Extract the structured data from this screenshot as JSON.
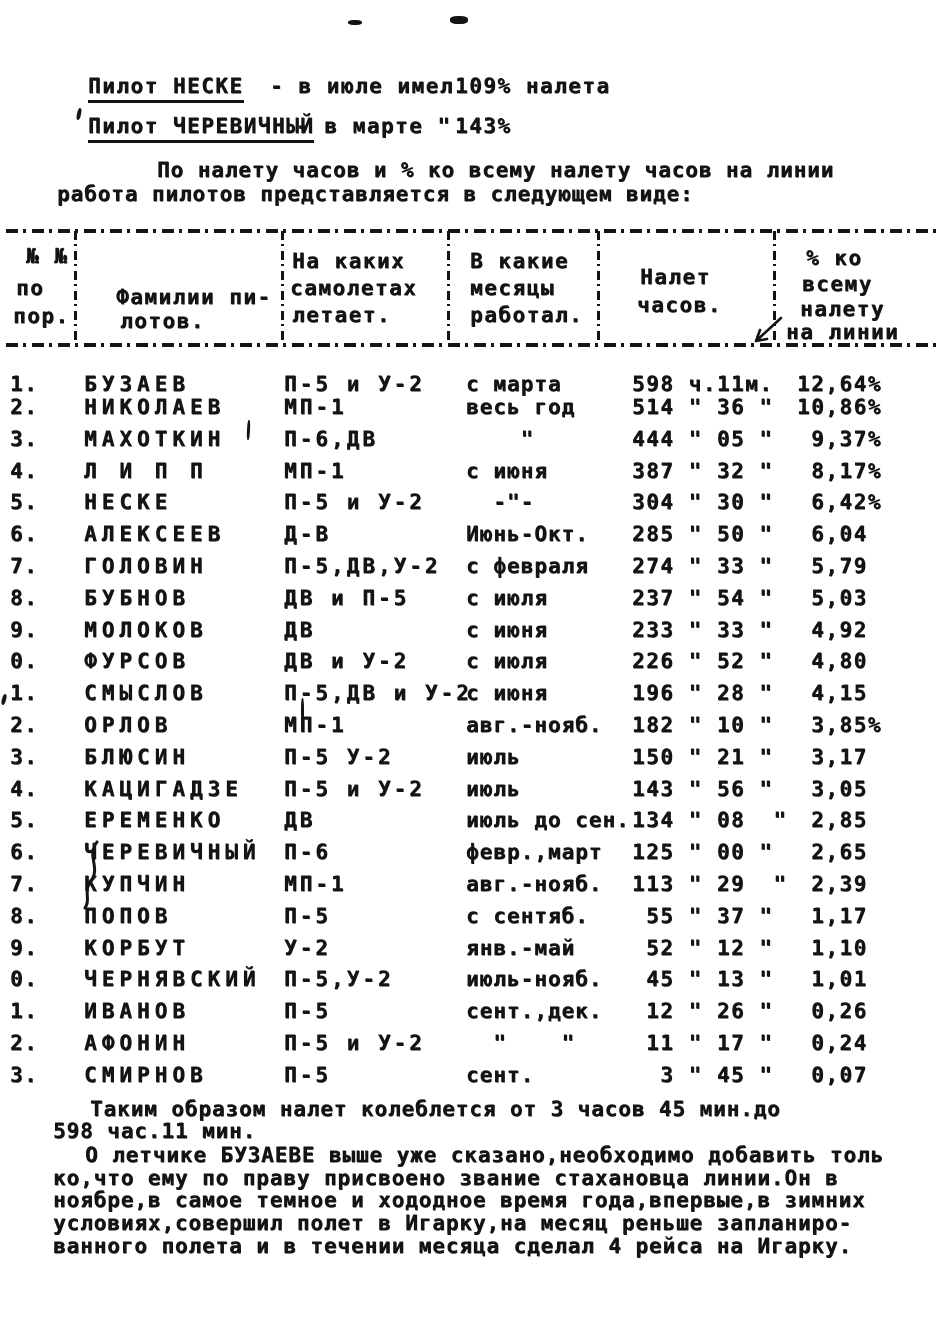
{
  "ink": "#141414",
  "paper": "#ffffff",
  "headline": {
    "line1": {
      "name": "Пилот НЕСКЕ",
      "middle": "- в июле имел",
      "value": "109% налета"
    },
    "line2": {
      "name": "Пилот ЧЕРЕВИЧНЫЙ",
      "middle": "- в марте \"",
      "value": "143%"
    }
  },
  "intro": {
    "line1": "По налету часов и % ко всему налету часов на линии",
    "line2": "работа пилотов представляется в следующем виде:"
  },
  "table": {
    "headers": {
      "num": [
        "№ №",
        "по",
        "пор."
      ],
      "name": [
        "Фамилии пи-",
        "лотов."
      ],
      "aircraft": [
        "На каких",
        "самолетах",
        "летает."
      ],
      "months": [
        "В какие",
        "месяцы",
        "работал."
      ],
      "hours": [
        "Налет",
        "часов."
      ],
      "percent": [
        "% ко",
        "всему",
        "налету",
        "на линии"
      ]
    },
    "rows": [
      {
        "num": "1.",
        "name": "БУЗАЕВ",
        "aircraft": "П-5 и У-2",
        "months": "с марта",
        "hours": "598 ч.11м.",
        "percent": "12,64%"
      },
      {
        "num": "2.",
        "name": "НИКОЛАЕВ",
        "aircraft": "МП-1",
        "months": "весь год",
        "hours": "514 \" 36 \"",
        "percent": "10,86%"
      },
      {
        "num": "3.",
        "name": "МАХОТКИН",
        "aircraft": "П-6,ДВ",
        "months": "    \"",
        "hours": "444 \" 05 \"",
        "percent": " 9,37%"
      },
      {
        "num": "4.",
        "name": "Л И П П",
        "aircraft": "МП-1",
        "months": "с июня",
        "hours": "387 \" 32 \"",
        "percent": " 8,17%"
      },
      {
        "num": "5.",
        "name": "НЕСКЕ",
        "aircraft": "П-5 и У-2",
        "months": "  -\"-",
        "hours": "304 \" 30 \"",
        "percent": " 6,42%"
      },
      {
        "num": "6.",
        "name": "АЛЕКСЕЕВ",
        "aircraft": "Д-В",
        "months": "Июнь-Окт.",
        "hours": "285 \" 50 \"",
        "percent": " 6,04"
      },
      {
        "num": "7.",
        "name": "ГОЛОВИН",
        "aircraft": "П-5,ДВ,У-2",
        "months": "с февраля",
        "hours": "274 \" 33 \"",
        "percent": " 5,79"
      },
      {
        "num": "8.",
        "name": "БУБНОВ",
        "aircraft": "ДВ и П-5",
        "months": "с июля",
        "hours": "237 \" 54 \"",
        "percent": " 5,03"
      },
      {
        "num": "9.",
        "name": "МОЛОКОВ",
        "aircraft": "ДВ",
        "months": "с июня",
        "hours": "233 \" 33 \"",
        "percent": " 4,92"
      },
      {
        "num": "0.",
        "name": "ФУРСОВ",
        "aircraft": "ДВ и У-2",
        "months": "с июля",
        "hours": "226 \" 52 \"",
        "percent": " 4,80"
      },
      {
        "num": "1.",
        "name": "СМЫСЛОВ",
        "aircraft": "П-5,ДВ и У-2",
        "months": "с июня",
        "hours": "196 \" 28 \"",
        "percent": " 4,15"
      },
      {
        "num": "2.",
        "name": "ОРЛОВ",
        "aircraft": "МП-1",
        "months": "авг.-нояб.",
        "hours": "182 \" 10 \"",
        "percent": " 3,85%"
      },
      {
        "num": "3.",
        "name": "БЛЮСИН",
        "aircraft": "П-5 У-2",
        "months": "июль",
        "hours": "150 \" 21 \"",
        "percent": " 3,17"
      },
      {
        "num": "4.",
        "name": "КАЦИГАДЗЕ",
        "aircraft": "П-5 и У-2",
        "months": "июль",
        "hours": "143 \" 56 \"",
        "percent": " 3,05"
      },
      {
        "num": "5.",
        "name": "ЕРЕМЕНКО",
        "aircraft": "ДВ",
        "months": "июль до сен.",
        "hours": "134 \" 08  \"",
        "percent": " 2,85"
      },
      {
        "num": "6.",
        "name": "ЧЕРЕВИЧНЫЙ",
        "aircraft": "П-6",
        "months": "февр.,март",
        "hours": "125 \" 00 \"",
        "percent": " 2,65"
      },
      {
        "num": "7.",
        "name": "КУПЧИН",
        "aircraft": "МП-1",
        "months": "авг.-нояб.",
        "hours": "113 \" 29  \"",
        "percent": " 2,39"
      },
      {
        "num": "8.",
        "name": "ПОПОВ",
        "aircraft": "П-5",
        "months": "с сентяб.",
        "hours": " 55 \" 37 \"",
        "percent": " 1,17"
      },
      {
        "num": "9.",
        "name": "КОРБУТ",
        "aircraft": "У-2",
        "months": "янв.-май",
        "hours": " 52 \" 12 \"",
        "percent": " 1,10"
      },
      {
        "num": "0.",
        "name": "ЧЕРНЯВСКИЙ",
        "aircraft": "П-5,У-2",
        "months": "июль-нояб.",
        "hours": " 45 \" 13 \"",
        "percent": " 1,01"
      },
      {
        "num": "1.",
        "name": "ИВАНОВ",
        "aircraft": "П-5",
        "months": "сент.,дек.",
        "hours": " 12 \" 26 \"",
        "percent": " 0,26"
      },
      {
        "num": "2.",
        "name": "АФОНИН",
        "aircraft": "П-5 и У-2",
        "months": "  \"    \"",
        "hours": " 11 \" 17 \"",
        "percent": " 0,24"
      },
      {
        "num": "3.",
        "name": "СМИРНОВ",
        "aircraft": "П-5",
        "months": "сент.",
        "hours": "  3 \" 45 \"",
        "percent": " 0,07"
      }
    ]
  },
  "footer": {
    "lines": [
      "Таким образом налет колеблется от 3 часов 45 мин.до",
      "598 час.11 мин.",
      "О летчике БУЗАЕВЕ выше уже сказано,необходимо добавить толь",
      "ко,что ему по праву присвоено звание стахановца линии.Он в",
      "ноябре,в самое темное и хододное время года,впервые,в зимних",
      "условиях,совершил полет в Игарку,на месяц реньше запланиро-",
      "ванного полета и в течении месяца сделал 4 рейса на Игарку."
    ]
  }
}
